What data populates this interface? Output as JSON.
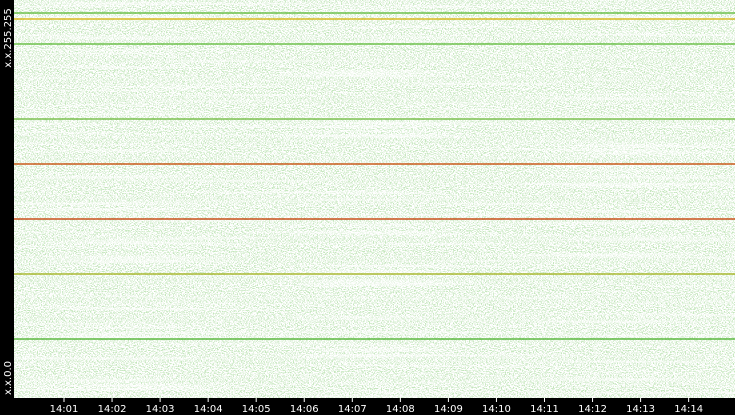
{
  "y_axis": {
    "top_label": "x.x.255.255",
    "bottom_label": "x.x.0.0"
  },
  "x_axis": {
    "ticks": [
      "14:01",
      "14:02",
      "14:03",
      "14:04",
      "14:05",
      "14:06",
      "14:07",
      "14:08",
      "14:09",
      "14:10",
      "14:11",
      "14:12",
      "14:13",
      "14:14"
    ]
  }
}
